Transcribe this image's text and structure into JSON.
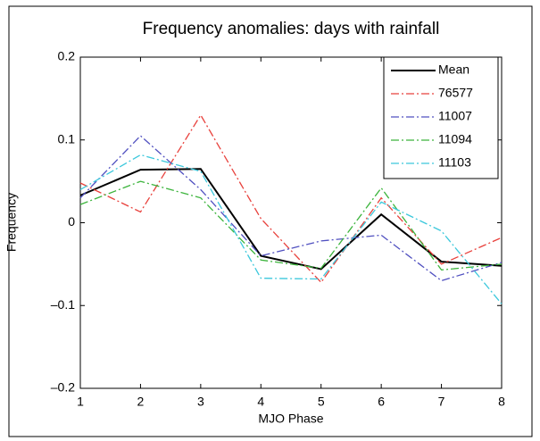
{
  "chart_data": {
    "type": "line",
    "title": "Frequency anomalies: days with rainfall",
    "xlabel": "MJO Phase",
    "ylabel": "Frequency",
    "x": [
      1,
      2,
      3,
      4,
      5,
      6,
      7,
      8
    ],
    "xlim": [
      1,
      8
    ],
    "xticks": [
      1,
      2,
      3,
      4,
      5,
      6,
      7,
      8
    ],
    "ylim": [
      -0.2,
      0.2
    ],
    "yticks": [
      {
        "value": -0.2,
        "label": "–0.2"
      },
      {
        "value": -0.1,
        "label": "–0.1"
      },
      0,
      0.1,
      0.2
    ],
    "legend": "upper right",
    "series": [
      {
        "name": "Mean",
        "color": "#000000",
        "values": [
          0.033,
          0.064,
          0.065,
          -0.04,
          -0.056,
          0.01,
          -0.047,
          -0.052
        ]
      },
      {
        "name": "76577",
        "color": "#e8413c",
        "values": [
          0.048,
          0.013,
          0.13,
          0.005,
          -0.072,
          0.03,
          -0.05,
          -0.018
        ]
      },
      {
        "name": "11007",
        "color": "#5050c0",
        "values": [
          0.03,
          0.105,
          0.04,
          -0.04,
          -0.022,
          -0.015,
          -0.07,
          -0.048
        ]
      },
      {
        "name": "11094",
        "color": "#3cb43c",
        "values": [
          0.022,
          0.05,
          0.03,
          -0.045,
          -0.055,
          0.042,
          -0.057,
          -0.05
        ]
      },
      {
        "name": "11103",
        "color": "#3cc8dc",
        "values": [
          0.04,
          0.082,
          0.062,
          -0.067,
          -0.068,
          0.025,
          -0.01,
          -0.098
        ]
      }
    ]
  }
}
